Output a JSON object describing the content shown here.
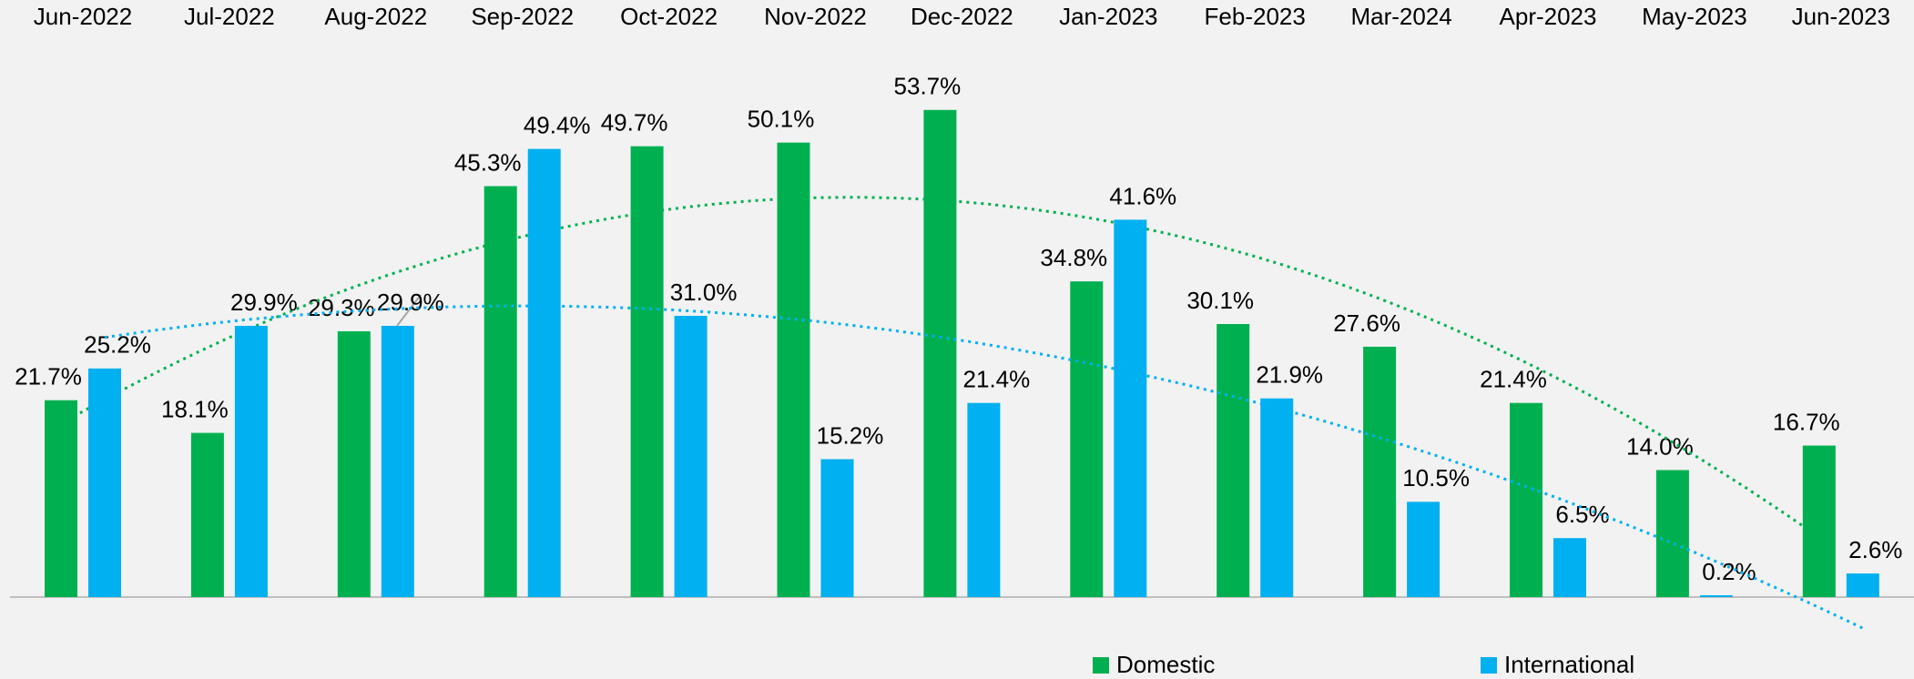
{
  "chart_data": {
    "type": "bar",
    "categories": [
      "Jun-2022",
      "Jul-2022",
      "Aug-2022",
      "Sep-2022",
      "Oct-2022",
      "Nov-2022",
      "Dec-2022",
      "Jan-2023",
      "Feb-2023",
      "Mar-2024",
      "Apr-2023",
      "May-2023",
      "Jun-2023"
    ],
    "series": [
      {
        "name": "Domestic",
        "color": "#00b050",
        "values": [
          21.7,
          18.1,
          29.3,
          45.3,
          49.7,
          50.1,
          53.7,
          34.8,
          30.1,
          27.6,
          21.4,
          14.0,
          16.7
        ],
        "value_labels": [
          "21.7%",
          "18.1%",
          "29.3%",
          "45.3%",
          "49.7%",
          "50.1%",
          "53.7%",
          "34.8%",
          "30.1%",
          "27.6%",
          "21.4%",
          "14.0%",
          "16.7%"
        ]
      },
      {
        "name": "International",
        "color": "#00b0f0",
        "values": [
          25.2,
          29.9,
          29.9,
          49.4,
          31.0,
          15.2,
          21.4,
          41.6,
          21.9,
          10.5,
          6.5,
          0.2,
          2.6
        ],
        "value_labels": [
          "25.2%",
          "29.9%",
          "29.9%",
          "49.4%",
          "31.0%",
          "15.2%",
          "21.4%",
          "41.6%",
          "21.9%",
          "10.5%",
          "6.5%",
          "0.2%",
          "2.6%"
        ]
      }
    ],
    "ylim": [
      0,
      60
    ],
    "trendline": "polynomial",
    "legend": "bottom"
  }
}
